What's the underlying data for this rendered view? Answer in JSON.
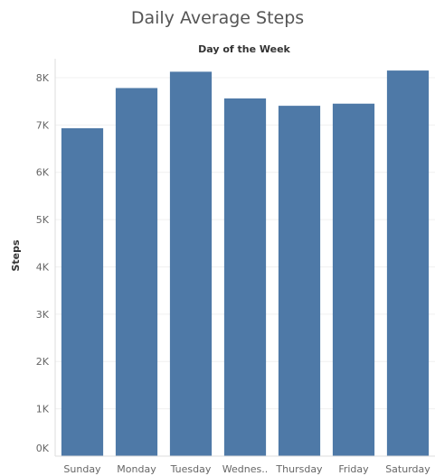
{
  "chart_data": {
    "type": "bar",
    "title": "Daily Average Steps",
    "column_header": "Day of the Week",
    "ylabel": "Steps",
    "categories": [
      "Sunday",
      "Monday",
      "Tuesday",
      "Wednes..",
      "Thursday",
      "Friday",
      "Saturday"
    ],
    "values": [
      6930,
      7780,
      8125,
      7560,
      7405,
      7450,
      8150
    ],
    "ylim": [
      0,
      8400
    ],
    "yticks": [
      {
        "value": 0,
        "label": "0K"
      },
      {
        "value": 1000,
        "label": "1K"
      },
      {
        "value": 2000,
        "label": "2K"
      },
      {
        "value": 3000,
        "label": "3K"
      },
      {
        "value": 4000,
        "label": "4K"
      },
      {
        "value": 5000,
        "label": "5K"
      },
      {
        "value": 6000,
        "label": "6K"
      },
      {
        "value": 7000,
        "label": "7K"
      },
      {
        "value": 8000,
        "label": "8K"
      }
    ],
    "bar_color": "#4e79a7",
    "grid": true,
    "legend": "none"
  }
}
